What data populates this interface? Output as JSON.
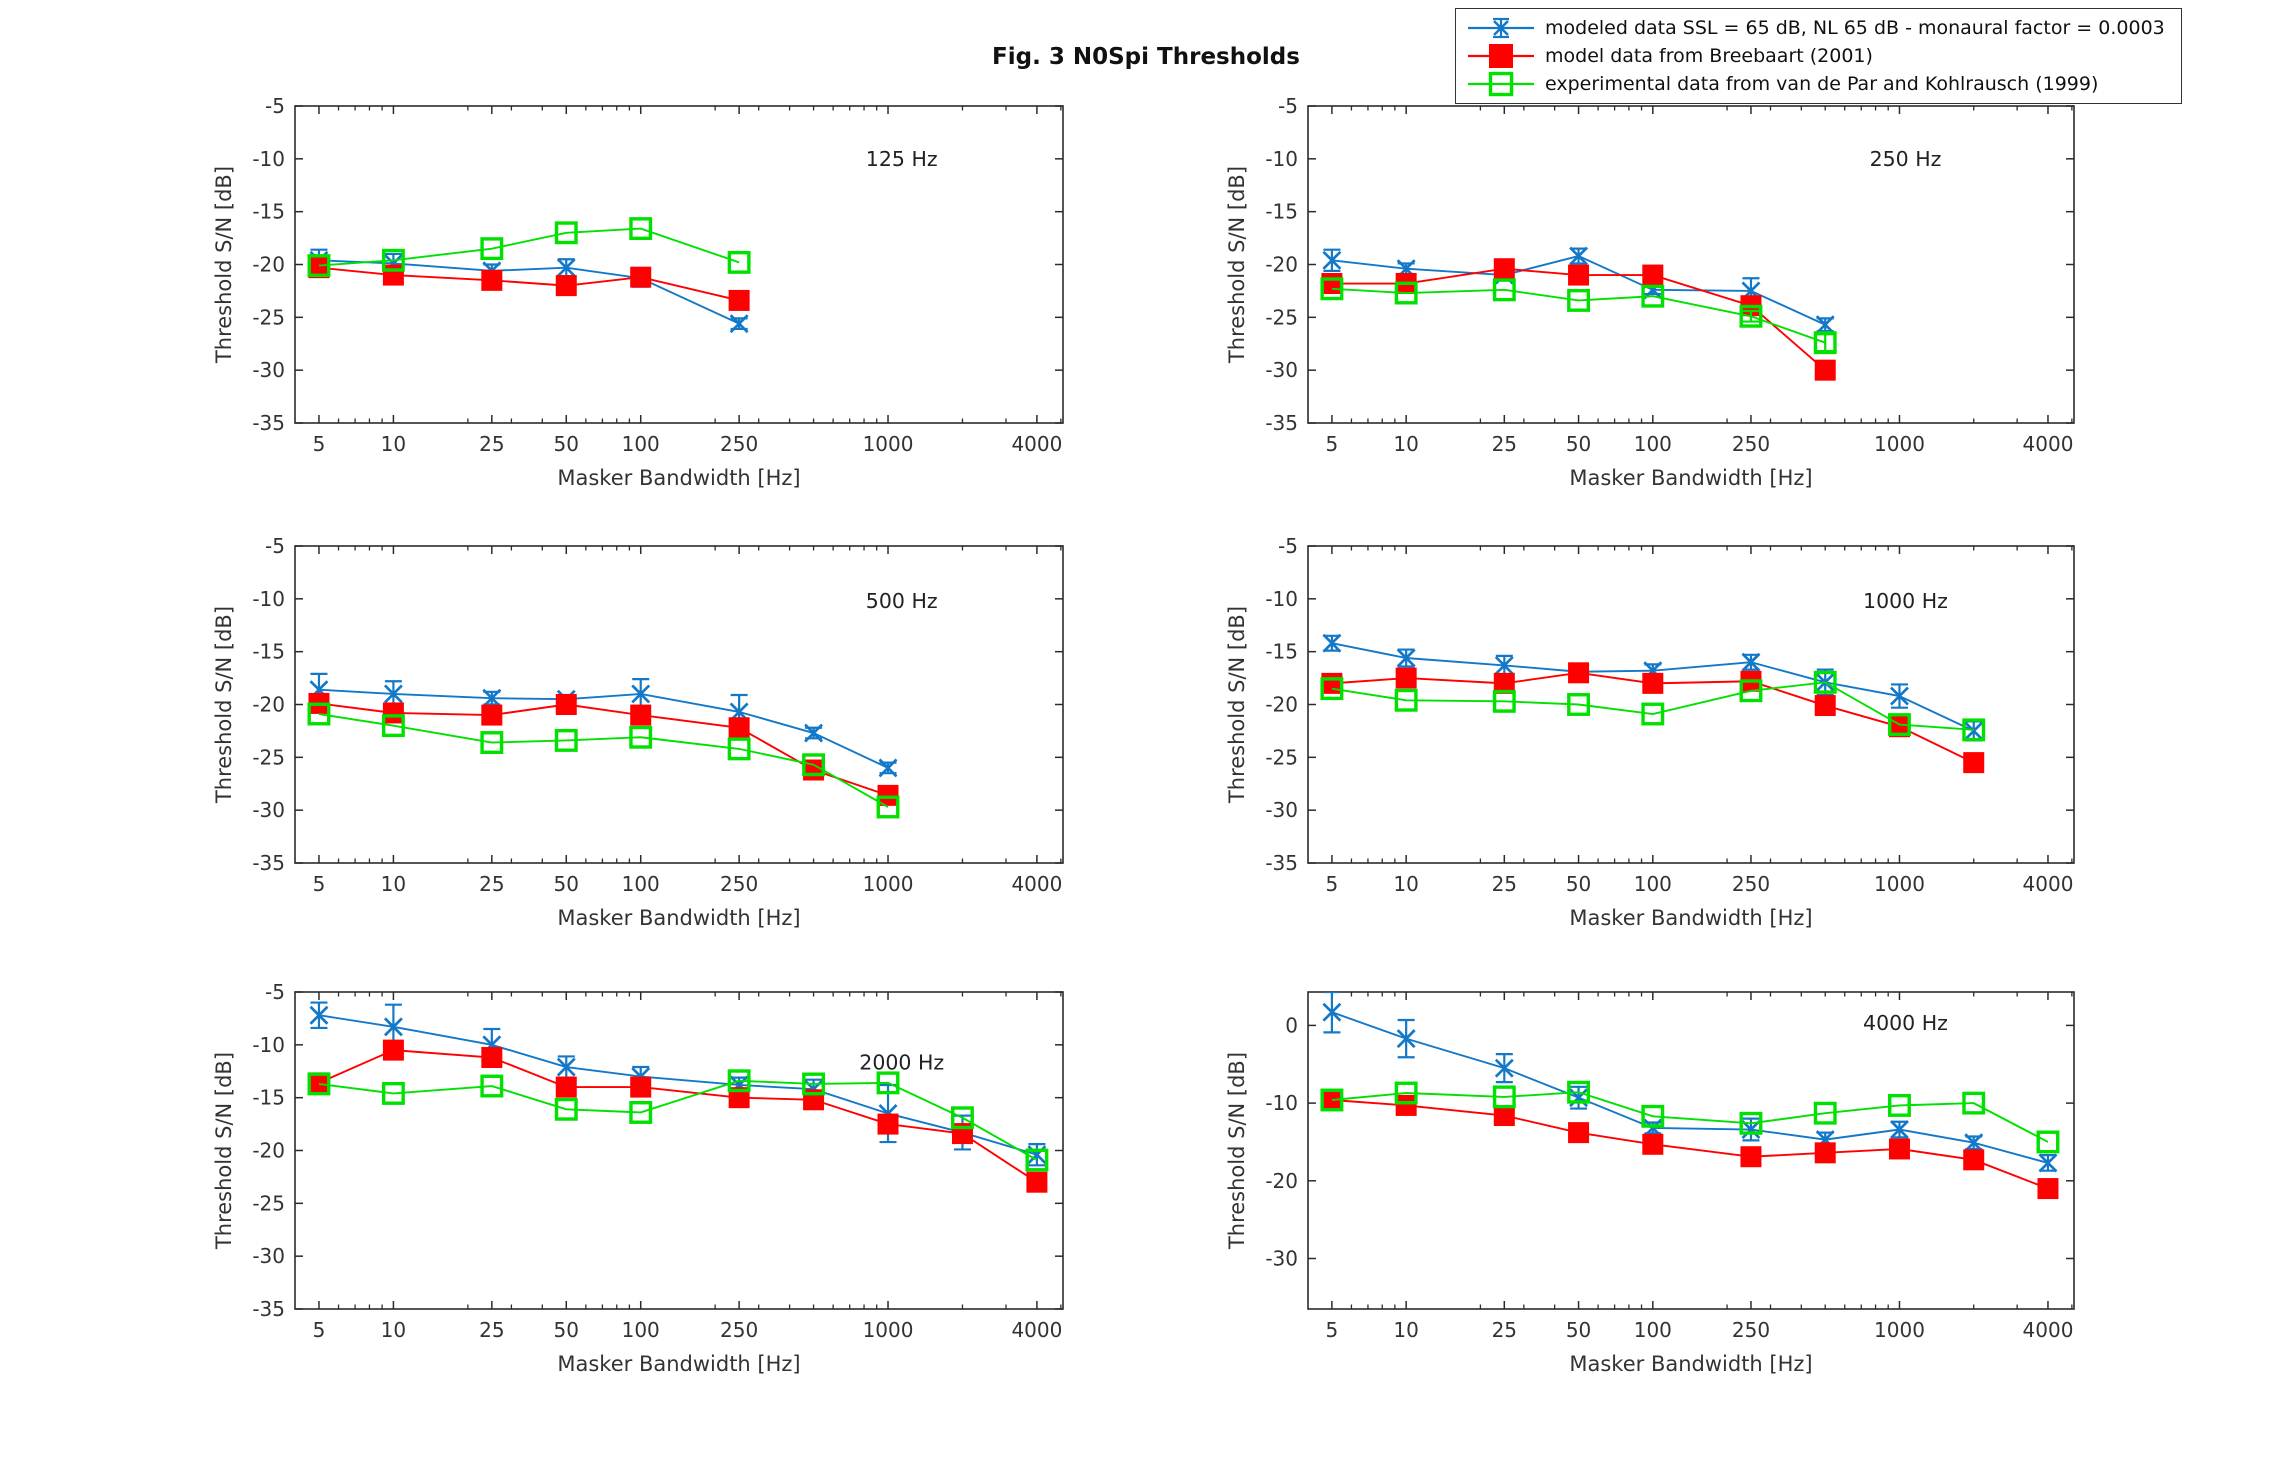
{
  "figure": {
    "title": "Fig. 3 N0Spi Thresholds",
    "background": "#ffffff",
    "xlabel": "Masker Bandwidth [Hz]",
    "ylabel": "Threshold S/N [dB]"
  },
  "legend": {
    "items": [
      {
        "label": "modeled data SSL = 65 dB, NL 65 dB  - monaural factor = 0.0003",
        "color": "#1478c8",
        "marker": "x-errorbar"
      },
      {
        "label": "model data from Breebaart (2001)",
        "color": "#ff0000",
        "marker": "filled-square"
      },
      {
        "label": "experimental data from van de Par and Kohlrausch (1999)",
        "color": "#00e100",
        "marker": "open-square"
      }
    ]
  },
  "chart_data": [
    {
      "type": "line",
      "panel_label": "125 Hz",
      "xlabel": "Masker Bandwidth [Hz]",
      "ylabel": "Threshold S/N [dB]",
      "xscale": "log",
      "xlim": [
        4,
        5100
      ],
      "ylim": [
        -35,
        -5
      ],
      "xticks": [
        5,
        10,
        25,
        50,
        100,
        250,
        1000,
        4000
      ],
      "yticks": [
        -5,
        -10,
        -15,
        -20,
        -25,
        -30,
        -35
      ],
      "x": [
        5,
        10,
        25,
        50,
        100,
        250
      ],
      "series": [
        {
          "name": "modeled data SSL = 65 dB, NL 65 dB  - monaural factor = 0.0003",
          "color": "#1478c8",
          "marker": "x-errorbar",
          "values": [
            -19.6,
            -19.9,
            -20.6,
            -20.3,
            -21.3,
            -25.6
          ],
          "err": [
            1.0,
            0.9,
            0.6,
            0.8,
            0.8,
            0.5
          ]
        },
        {
          "name": "model data from Breebaart (2001)",
          "color": "#ff0000",
          "marker": "filled-square",
          "values": [
            -20.3,
            -21.0,
            -21.5,
            -22.0,
            -21.2,
            -23.4
          ]
        },
        {
          "name": "experimental data from van de Par and Kohlrausch (1999)",
          "color": "#00e100",
          "marker": "open-square",
          "values": [
            -20.1,
            -19.6,
            -18.5,
            -17.0,
            -16.6,
            -19.8
          ]
        }
      ]
    },
    {
      "type": "line",
      "panel_label": "250 Hz",
      "xlabel": "Masker Bandwidth [Hz]",
      "ylabel": "Threshold S/N [dB]",
      "xscale": "log",
      "xlim": [
        4,
        5100
      ],
      "ylim": [
        -35,
        -5
      ],
      "xticks": [
        5,
        10,
        25,
        50,
        100,
        250,
        1000,
        4000
      ],
      "yticks": [
        -5,
        -10,
        -15,
        -20,
        -25,
        -30,
        -35
      ],
      "x": [
        5,
        10,
        25,
        50,
        100,
        250,
        500
      ],
      "series": [
        {
          "name": "modeled data SSL = 65 dB, NL 65 dB  - monaural factor = 0.0003",
          "color": "#1478c8",
          "marker": "x-errorbar",
          "values": [
            -19.6,
            -20.4,
            -21.0,
            -19.2,
            -22.4,
            -22.5,
            -25.7
          ],
          "err": [
            1.0,
            0.5,
            0.5,
            0.7,
            0.4,
            1.2,
            0.6
          ]
        },
        {
          "name": "model data from Breebaart (2001)",
          "color": "#ff0000",
          "marker": "filled-square",
          "values": [
            -21.8,
            -21.8,
            -20.4,
            -21.0,
            -21.0,
            -23.9,
            -30.0
          ]
        },
        {
          "name": "experimental data from van de Par and Kohlrausch (1999)",
          "color": "#00e100",
          "marker": "open-square",
          "values": [
            -22.3,
            -22.7,
            -22.4,
            -23.4,
            -23.0,
            -24.9,
            -27.4
          ],
          "err": [
            0,
            0,
            0,
            0,
            0,
            0.5,
            0.8
          ]
        }
      ]
    },
    {
      "type": "line",
      "panel_label": "500 Hz",
      "xlabel": "Masker Bandwidth [Hz]",
      "ylabel": "Threshold S/N [dB]",
      "xscale": "log",
      "xlim": [
        4,
        5100
      ],
      "ylim": [
        -35,
        -5
      ],
      "xticks": [
        5,
        10,
        25,
        50,
        100,
        250,
        1000,
        4000
      ],
      "yticks": [
        -5,
        -10,
        -15,
        -20,
        -25,
        -30,
        -35
      ],
      "x": [
        5,
        10,
        25,
        50,
        100,
        250,
        500,
        1000
      ],
      "series": [
        {
          "name": "modeled data SSL = 65 dB, NL 65 dB  - monaural factor = 0.0003",
          "color": "#1478c8",
          "marker": "x-errorbar",
          "values": [
            -18.6,
            -19.0,
            -19.4,
            -19.5,
            -19.0,
            -20.7,
            -22.7,
            -26.0
          ],
          "err": [
            1.5,
            1.2,
            0.6,
            0.4,
            1.4,
            1.6,
            0.5,
            0.5
          ]
        },
        {
          "name": "model data from Breebaart (2001)",
          "color": "#ff0000",
          "marker": "filled-square",
          "values": [
            -19.9,
            -20.8,
            -21.0,
            -20.0,
            -21.0,
            -22.2,
            -26.2,
            -28.6
          ]
        },
        {
          "name": "experimental data from van de Par and Kohlrausch (1999)",
          "color": "#00e100",
          "marker": "open-square",
          "values": [
            -20.9,
            -22.0,
            -23.6,
            -23.4,
            -23.1,
            -24.2,
            -25.7,
            -29.7
          ]
        }
      ]
    },
    {
      "type": "line",
      "panel_label": "1000 Hz",
      "xlabel": "Masker Bandwidth [Hz]",
      "ylabel": "Threshold S/N [dB]",
      "xscale": "log",
      "xlim": [
        4,
        5100
      ],
      "ylim": [
        -35,
        -5
      ],
      "xticks": [
        5,
        10,
        25,
        50,
        100,
        250,
        1000,
        4000
      ],
      "yticks": [
        -5,
        -10,
        -15,
        -20,
        -25,
        -30,
        -35
      ],
      "x": [
        5,
        10,
        25,
        50,
        100,
        250,
        500,
        1000,
        2000
      ],
      "series": [
        {
          "name": "modeled data SSL = 65 dB, NL 65 dB  - monaural factor = 0.0003",
          "color": "#1478c8",
          "marker": "x-errorbar",
          "values": [
            -14.2,
            -15.6,
            -16.3,
            -16.9,
            -16.8,
            -16.0,
            -17.9,
            -19.2,
            -22.5
          ],
          "err": [
            0.7,
            0.8,
            0.9,
            0.5,
            0.6,
            0.7,
            1.2,
            1.1,
            0.9
          ]
        },
        {
          "name": "model data from Breebaart (2001)",
          "color": "#ff0000",
          "marker": "filled-square",
          "values": [
            -18.0,
            -17.5,
            -18.0,
            -17.0,
            -18.0,
            -17.8,
            -20.1,
            -22.1,
            -25.5
          ]
        },
        {
          "name": "experimental data from van de Par and Kohlrausch (1999)",
          "color": "#00e100",
          "marker": "open-square",
          "values": [
            -18.5,
            -19.6,
            -19.7,
            -20.0,
            -20.9,
            -18.7,
            -17.9,
            -21.9,
            -22.4
          ]
        }
      ]
    },
    {
      "type": "line",
      "panel_label": "2000 Hz",
      "xlabel": "Masker Bandwidth [Hz]",
      "ylabel": "Threshold S/N [dB]",
      "xscale": "log",
      "xlim": [
        4,
        5100
      ],
      "ylim": [
        -35,
        -5
      ],
      "xticks": [
        5,
        10,
        25,
        50,
        100,
        250,
        1000,
        4000
      ],
      "yticks": [
        -5,
        -10,
        -15,
        -20,
        -25,
        -30,
        -35
      ],
      "x": [
        5,
        10,
        25,
        50,
        100,
        250,
        500,
        1000,
        2000,
        4000
      ],
      "series": [
        {
          "name": "modeled data SSL = 65 dB, NL 65 dB  - monaural factor = 0.0003",
          "color": "#1478c8",
          "marker": "x-errorbar",
          "values": [
            -7.2,
            -8.3,
            -10.0,
            -12.1,
            -13.0,
            -13.8,
            -14.2,
            -16.5,
            -18.3,
            -20.4
          ],
          "err": [
            1.2,
            2.1,
            1.5,
            1.0,
            0.9,
            0.7,
            0.9,
            2.7,
            1.6,
            1.0
          ]
        },
        {
          "name": "model data from Breebaart (2001)",
          "color": "#ff0000",
          "marker": "filled-square",
          "values": [
            -13.6,
            -10.5,
            -11.2,
            -14.0,
            -14.0,
            -15.0,
            -15.2,
            -17.5,
            -18.4,
            -23.0
          ]
        },
        {
          "name": "experimental data from van de Par and Kohlrausch (1999)",
          "color": "#00e100",
          "marker": "open-square",
          "values": [
            -13.7,
            -14.6,
            -13.9,
            -16.1,
            -16.4,
            -13.4,
            -13.7,
            -13.6,
            -16.9,
            -20.9
          ]
        }
      ]
    },
    {
      "type": "line",
      "panel_label": "4000 Hz",
      "xlabel": "Masker Bandwidth [Hz]",
      "ylabel": "Threshold S/N [dB]",
      "xscale": "log",
      "xlim": [
        4,
        5100
      ],
      "ylim": [
        -36.5,
        4.3
      ],
      "xticks": [
        5,
        10,
        25,
        50,
        100,
        250,
        1000,
        4000
      ],
      "yticks": [
        0,
        -10,
        -20,
        -30
      ],
      "x": [
        5,
        10,
        25,
        50,
        100,
        250,
        500,
        1000,
        2000,
        4000
      ],
      "series": [
        {
          "name": "modeled data SSL = 65 dB, NL 65 dB  - monaural factor = 0.0003",
          "color": "#1478c8",
          "marker": "x-errorbar",
          "values": [
            1.7,
            -1.7,
            -5.5,
            -9.3,
            -13.2,
            -13.4,
            -14.7,
            -13.4,
            -15.1,
            -17.7
          ],
          "err": [
            2.6,
            2.4,
            1.8,
            1.4,
            0.7,
            1.4,
            0.9,
            1.0,
            0.8,
            1.0
          ]
        },
        {
          "name": "model data from Breebaart (2001)",
          "color": "#ff0000",
          "marker": "filled-square",
          "values": [
            -9.6,
            -10.3,
            -11.6,
            -13.8,
            -15.3,
            -16.9,
            -16.4,
            -15.9,
            -17.3,
            -21.0
          ]
        },
        {
          "name": "experimental data from van de Par and Kohlrausch (1999)",
          "color": "#00e100",
          "marker": "open-square",
          "values": [
            -9.6,
            -8.7,
            -9.2,
            -8.6,
            -11.7,
            -12.6,
            -11.3,
            -10.3,
            -10.0,
            -15.0
          ]
        }
      ]
    }
  ]
}
